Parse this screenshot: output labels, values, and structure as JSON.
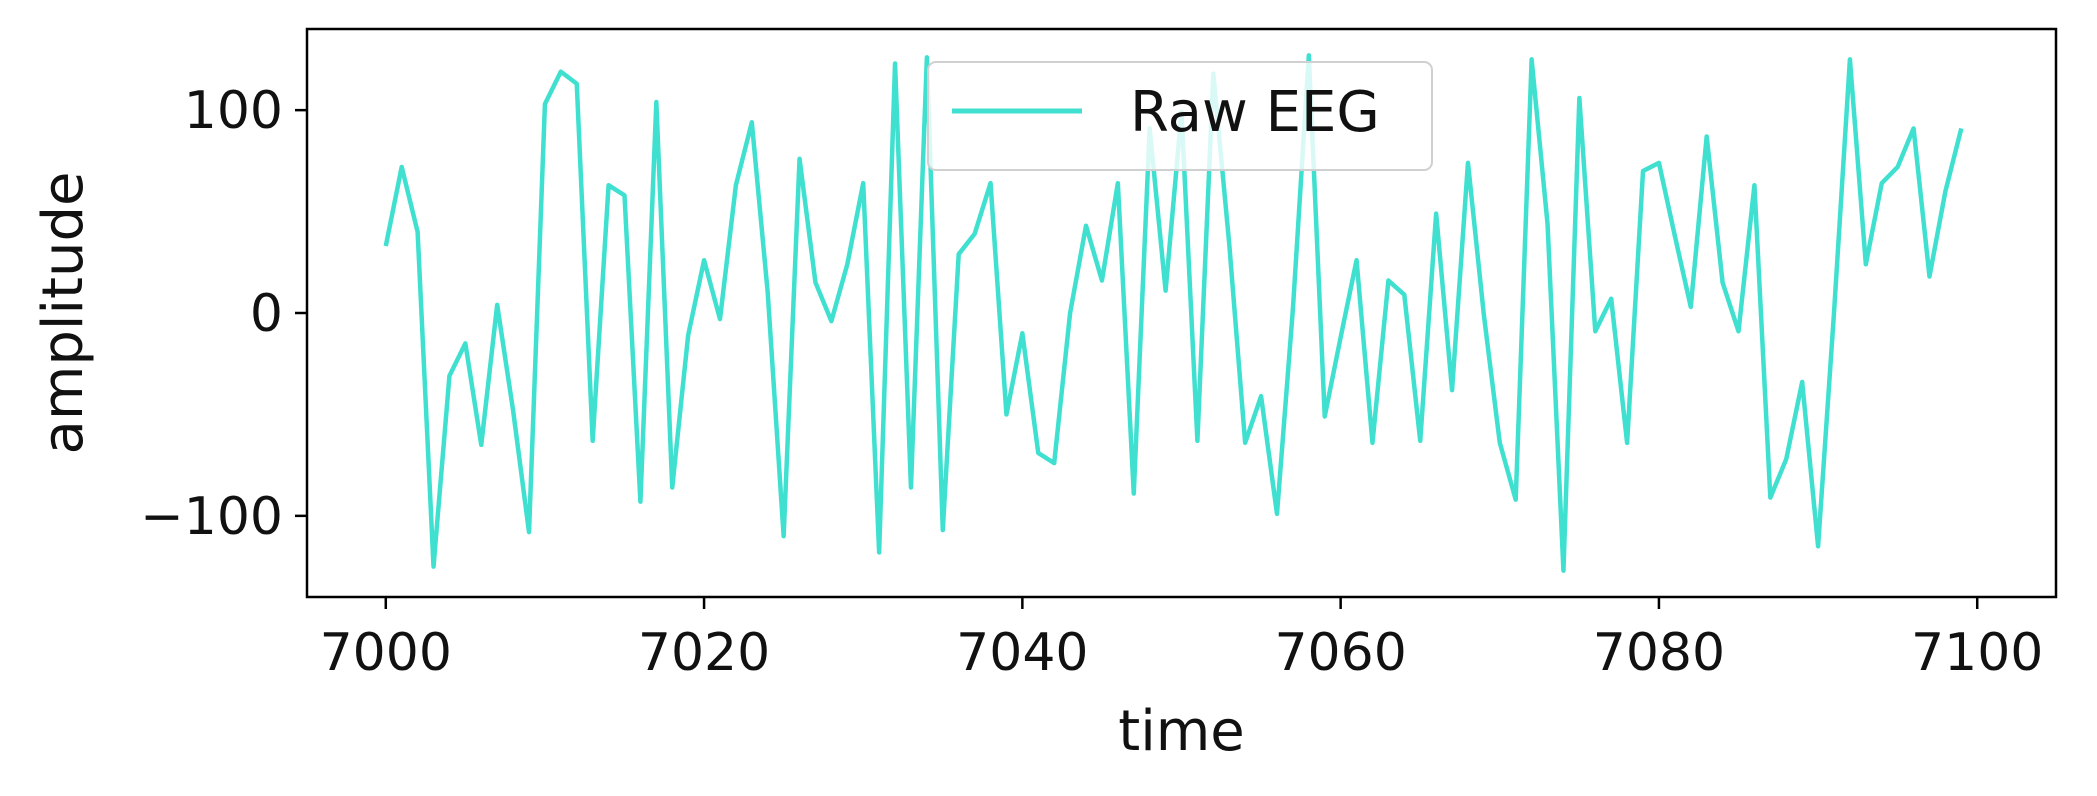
{
  "chart_data": {
    "type": "line",
    "title": "",
    "xlabel": "time",
    "ylabel": "amplitude",
    "xlim": [
      7000,
      7100
    ],
    "ylim": [
      -140,
      140
    ],
    "grid": false,
    "legend_position": "top-center",
    "x_ticks": [
      7000,
      7020,
      7040,
      7060,
      7080,
      7100
    ],
    "x_tick_labels": [
      "7000",
      "7020",
      "7040",
      "7060",
      "7080",
      "7100"
    ],
    "y_ticks": [
      100,
      0,
      -100
    ],
    "y_tick_labels": [
      "100",
      "0",
      "−100"
    ],
    "series": [
      {
        "name": "Raw EEG",
        "color": "#40E0D0",
        "x": [
          7000,
          7001,
          7002,
          7003,
          7004,
          7005,
          7006,
          7007,
          7008,
          7009,
          7010,
          7011,
          7012,
          7013,
          7014,
          7015,
          7016,
          7017,
          7018,
          7019,
          7020,
          7021,
          7022,
          7023,
          7024,
          7025,
          7026,
          7027,
          7028,
          7029,
          7030,
          7031,
          7032,
          7033,
          7034,
          7035,
          7036,
          7037,
          7038,
          7039,
          7040,
          7041,
          7042,
          7043,
          7044,
          7045,
          7046,
          7047,
          7048,
          7049,
          7050,
          7051,
          7052,
          7053,
          7054,
          7055,
          7056,
          7057,
          7058,
          7059,
          7060,
          7061,
          7062,
          7063,
          7064,
          7065,
          7066,
          7067,
          7068,
          7069,
          7070,
          7071,
          7072,
          7073,
          7074,
          7075,
          7076,
          7077,
          7078,
          7079,
          7080,
          7081,
          7082,
          7083,
          7084,
          7085,
          7086,
          7087,
          7088,
          7089,
          7090,
          7091,
          7092,
          7093,
          7094,
          7095,
          7096,
          7097,
          7098,
          7099
        ],
        "values": [
          33,
          72,
          40,
          -125,
          -31,
          -15,
          -65,
          4,
          -48,
          -108,
          103,
          119,
          113,
          -63,
          63,
          58,
          -93,
          104,
          -86,
          -11,
          26,
          -3,
          63,
          94,
          10,
          -110,
          76,
          15,
          -4,
          24,
          64,
          -118,
          123,
          -86,
          126,
          -107,
          29,
          39,
          64,
          -50,
          -10,
          -69,
          -74,
          0,
          43,
          16,
          64,
          -89,
          91,
          11,
          99,
          -63,
          118,
          34,
          -64,
          -41,
          -99,
          2,
          127,
          -51,
          -12,
          26,
          -64,
          16,
          9,
          -63,
          49,
          -38,
          74,
          -1,
          -64,
          -92,
          125,
          44,
          -127,
          106,
          -9,
          7,
          -64,
          70,
          74,
          38,
          3,
          87,
          15,
          -9,
          63,
          -91,
          -72,
          -34,
          -115,
          0,
          125,
          24,
          64,
          72,
          91,
          18,
          60,
          91
        ]
      }
    ]
  }
}
